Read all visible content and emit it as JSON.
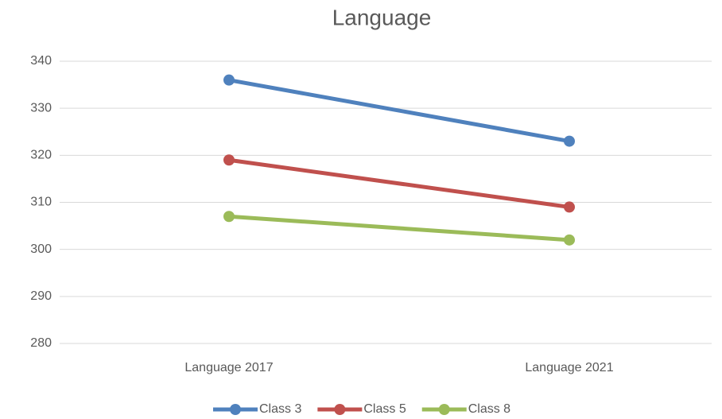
{
  "chart_data": {
    "type": "line",
    "title": "Language",
    "categories": [
      "Language 2017",
      "Language 2021"
    ],
    "series": [
      {
        "name": "Class 3",
        "color": "#4f81bd",
        "values": [
          336,
          323
        ]
      },
      {
        "name": "Class 5",
        "color": "#c0504d",
        "values": [
          319,
          309
        ]
      },
      {
        "name": "Class 8",
        "color": "#9bbb59",
        "values": [
          307,
          302
        ]
      }
    ],
    "ylim": [
      280,
      340
    ],
    "yticks": [
      280,
      290,
      300,
      310,
      320,
      330,
      340
    ],
    "grid": true,
    "legend": "bottom"
  }
}
